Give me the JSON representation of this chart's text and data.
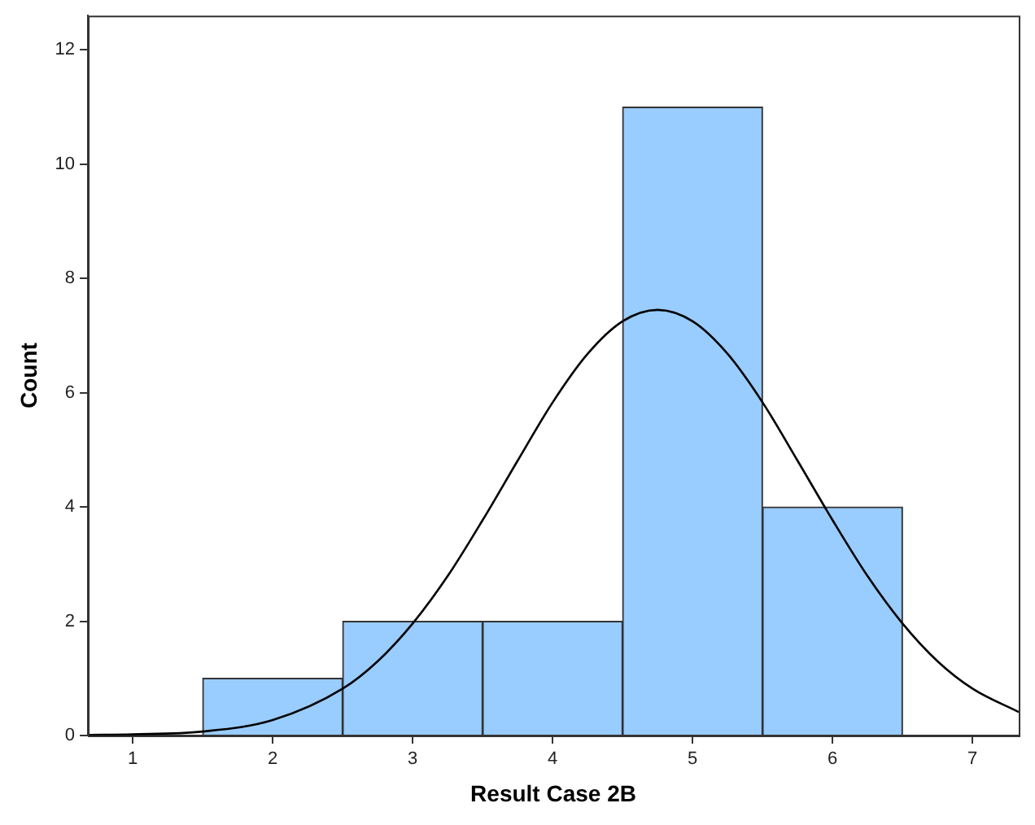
{
  "chart_data": {
    "type": "histogram",
    "xlabel": "Result Case 2B",
    "ylabel": "Count",
    "bins": [
      1.5,
      2.5,
      3.5,
      4.5,
      5.5,
      6.5
    ],
    "values": [
      1,
      2,
      2,
      11,
      4
    ],
    "color": "#99ccff",
    "series": [
      {
        "type": "line",
        "color": "#000000",
        "x": [
          0.68,
          1,
          1.5,
          2,
          2.5,
          2.75,
          3,
          3.25,
          3.5,
          3.75,
          4,
          4.25,
          4.5,
          4.75,
          5,
          5.25,
          5.5,
          5.75,
          6,
          6.25,
          6.5,
          6.75,
          7,
          7.33
        ],
        "values": [
          0.01,
          0.02,
          0.07,
          0.27,
          0.82,
          1.3,
          1.96,
          2.79,
          3.77,
          4.81,
          5.83,
          6.68,
          7.25,
          7.45,
          7.25,
          6.68,
          5.83,
          4.81,
          3.77,
          2.79,
          1.96,
          1.3,
          0.82,
          0.41
        ]
      }
    ],
    "xlim": [
      0.68,
      7.33
    ],
    "ylim": [
      0,
      12.6
    ],
    "xticks": [
      1,
      2,
      3,
      4,
      5,
      6,
      7
    ],
    "yticks": [
      0,
      2,
      4,
      6,
      8,
      10,
      12
    ],
    "grid": false,
    "legend": false
  }
}
